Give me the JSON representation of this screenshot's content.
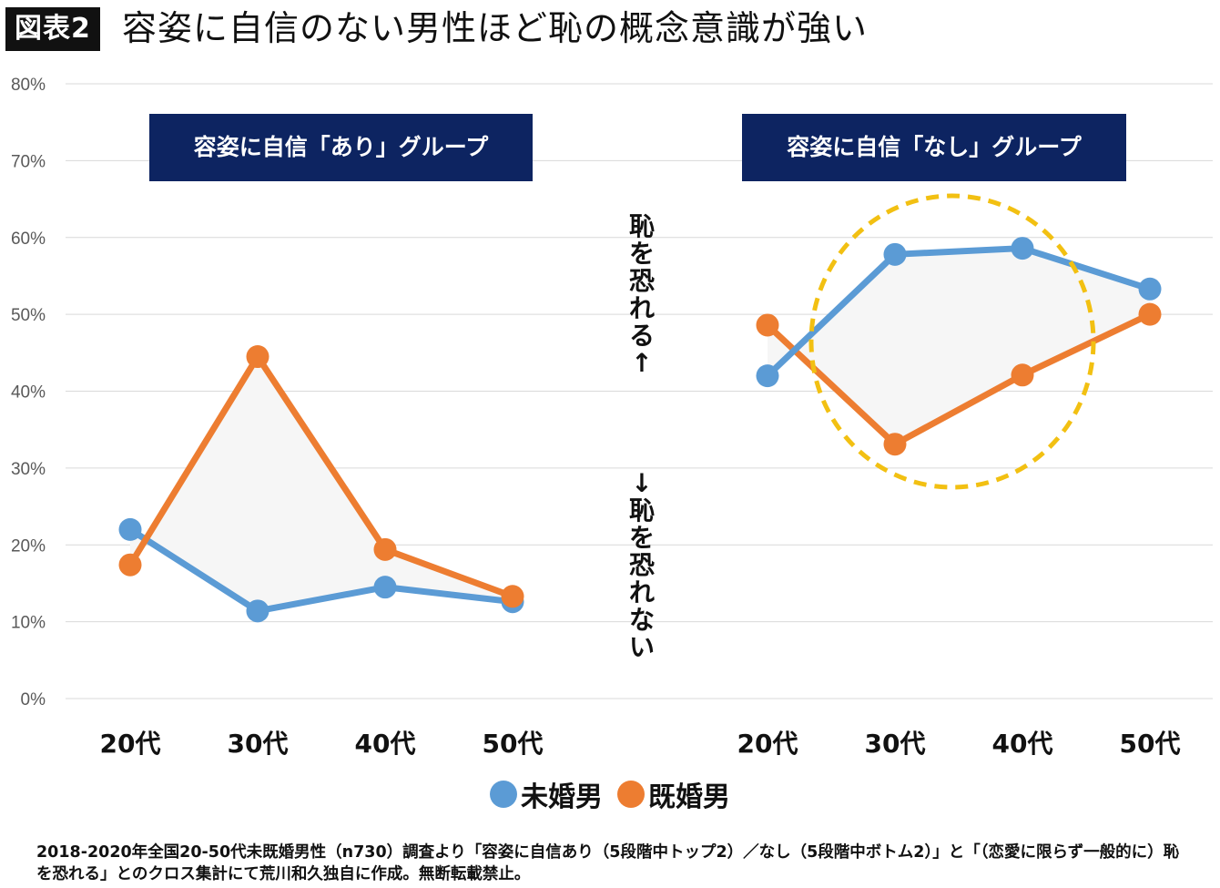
{
  "figure_tag": "図表2",
  "title": "容姿に自信のない男性ほど恥の概念意識が強い",
  "groups": [
    {
      "label": "容姿に自信「あり」グループ"
    },
    {
      "label": "容姿に自信「なし」グループ"
    }
  ],
  "annotations": {
    "up": "恥を恐れる↑",
    "down": "↓恥を恐れない"
  },
  "legend": [
    "未婚男",
    "既婚男"
  ],
  "footnote": "2018-2020年全国20-50代未既婚男性（n730）調査より「容姿に自信あり（5段階中トップ2）／なし（5段階中ボトム2）」と「（恋愛に限らず一般的に）恥を恐れる」とのクロス集計にて荒川和久独自に作成。無断転載禁止。",
  "colors": {
    "unmarried": "#5b9bd5",
    "married": "#ed7d31",
    "highlight_circle": "#f2c012",
    "group_box": "#0d2461"
  },
  "chart_data": {
    "type": "line",
    "y_ticks": [
      "0%",
      "10%",
      "20%",
      "30%",
      "40%",
      "50%",
      "60%",
      "70%",
      "80%"
    ],
    "ylim": [
      0,
      80
    ],
    "grid": true,
    "panels": [
      {
        "group": "容姿に自信「あり」グループ",
        "categories": [
          "20代",
          "30代",
          "40代",
          "50代"
        ],
        "series": [
          {
            "name": "未婚男",
            "values": [
              22.0,
              11.4,
              14.5,
              12.6
            ]
          },
          {
            "name": "既婚男",
            "values": [
              17.4,
              44.5,
              19.4,
              13.3
            ]
          }
        ]
      },
      {
        "group": "容姿に自信「なし」グループ",
        "categories": [
          "20代",
          "30代",
          "40代",
          "50代"
        ],
        "series": [
          {
            "name": "未婚男",
            "values": [
              42.0,
              57.8,
              58.6,
              53.3
            ]
          },
          {
            "name": "既婚男",
            "values": [
              48.6,
              33.1,
              42.1,
              50.0
            ]
          }
        ],
        "highlight": "dashed-circle"
      }
    ]
  }
}
